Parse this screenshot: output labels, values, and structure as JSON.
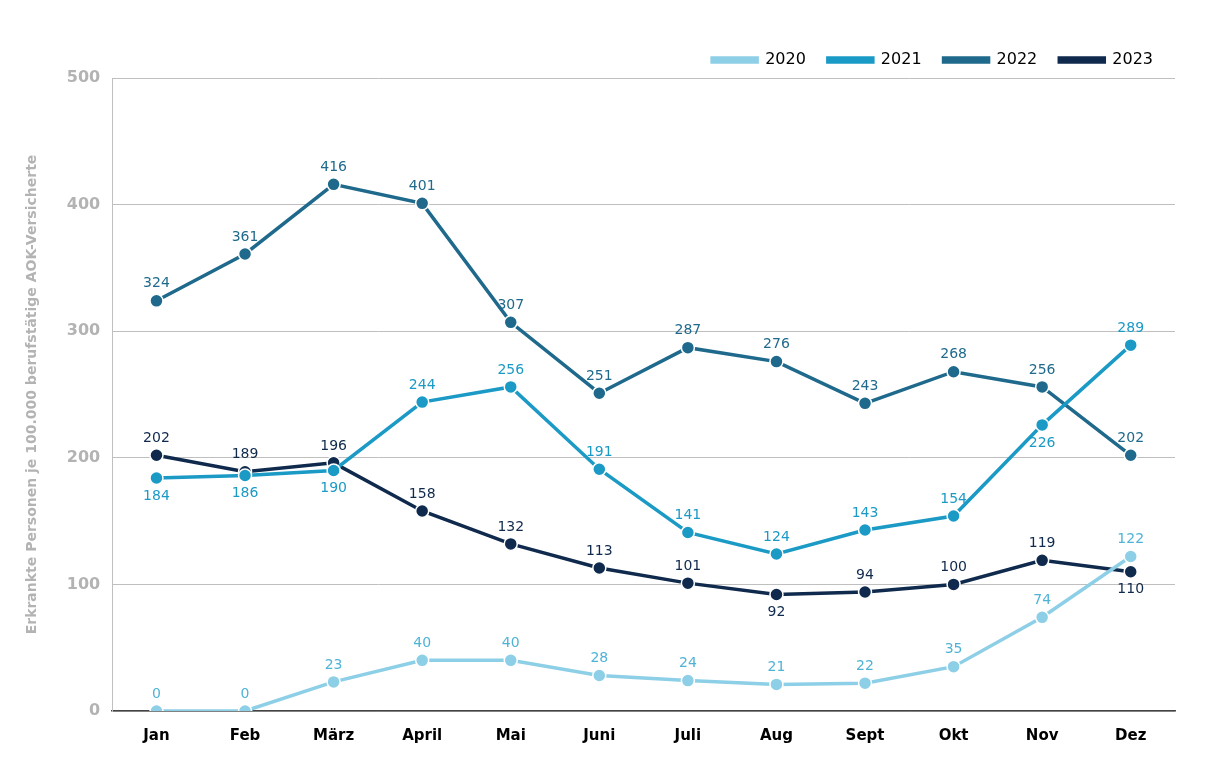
{
  "chart_data": {
    "type": "line",
    "y_label": "Erkrankte Personen je 100.000 berufstätige AOK-Versicherte",
    "categories": [
      "Jan",
      "Feb",
      "März",
      "April",
      "Mai",
      "Juni",
      "Juli",
      "Aug",
      "Sept",
      "Okt",
      "Nov",
      "Dez"
    ],
    "series": [
      {
        "name": "2020",
        "color": "#8dcfe6",
        "values": [
          0,
          0,
          23,
          40,
          40,
          28,
          24,
          21,
          22,
          35,
          74,
          122
        ]
      },
      {
        "name": "2021",
        "color": "#1b9ac6",
        "values": [
          184,
          186,
          190,
          244,
          256,
          191,
          141,
          124,
          143,
          154,
          226,
          289
        ]
      },
      {
        "name": "2022",
        "color": "#1f6a8c",
        "values": [
          324,
          361,
          416,
          401,
          307,
          251,
          287,
          276,
          243,
          268,
          256,
          202
        ]
      },
      {
        "name": "2023",
        "color": "#0f2a4d",
        "values": [
          202,
          189,
          196,
          158,
          132,
          113,
          101,
          92,
          94,
          100,
          119,
          110
        ]
      }
    ],
    "ylim": [
      0,
      500
    ],
    "yticks": [
      0,
      100,
      200,
      300,
      400,
      500
    ],
    "grid": true,
    "legend": "upper right",
    "data_labels": true,
    "marker": "circle"
  }
}
